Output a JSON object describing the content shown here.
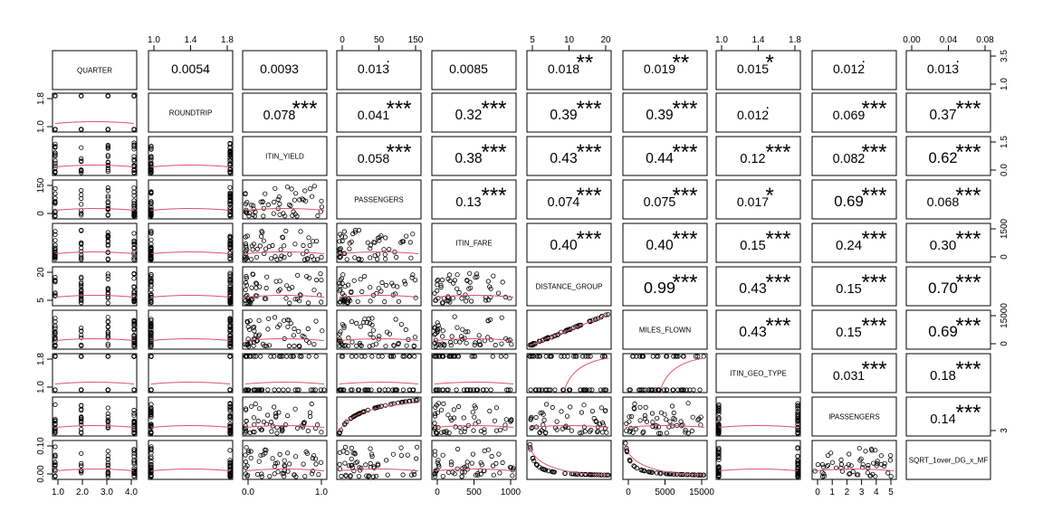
{
  "chart_data": {
    "type": "scatter",
    "variables": [
      "QUARTER",
      "ROUNDTRIP",
      "ITIN_YIELD",
      "PASSENGERS",
      "ITIN_FARE",
      "DISTANCE_GROUP",
      "MILES_FLOWN",
      "ITIN_GEO_TYPE",
      "lPASSENGERS",
      "SQRT_1over_DG_x_MF"
    ],
    "correlations": [
      [
        "",
        "0.0054",
        "0.0093",
        "0.013",
        "0.0085",
        "0.018",
        "0.019",
        "0.015",
        "0.012",
        "0.013"
      ],
      [
        "",
        "",
        "0.078",
        "0.041",
        "0.32",
        "0.39",
        "0.39",
        "0.012",
        "0.069",
        "0.37"
      ],
      [
        "",
        "",
        "",
        "0.058",
        "0.38",
        "0.43",
        "0.44",
        "0.12",
        "0.082",
        "0.62"
      ],
      [
        "",
        "",
        "",
        "",
        "0.13",
        "0.074",
        "0.075",
        "0.017",
        "0.69",
        "0.068"
      ],
      [
        "",
        "",
        "",
        "",
        "",
        "0.40",
        "0.40",
        "0.15",
        "0.24",
        "0.30"
      ],
      [
        "",
        "",
        "",
        "",
        "",
        "",
        "0.99",
        "0.43",
        "0.15",
        "0.70"
      ],
      [
        "",
        "",
        "",
        "",
        "",
        "",
        "",
        "0.43",
        "0.15",
        "0.69"
      ],
      [
        "",
        "",
        "",
        "",
        "",
        "",
        "",
        "",
        "0.031",
        "0.18"
      ],
      [
        "",
        "",
        "",
        "",
        "",
        "",
        "",
        "",
        "",
        "0.14"
      ]
    ],
    "significance": [
      [
        "",
        "",
        "",
        ".",
        "",
        "**",
        "**",
        "*",
        ".",
        "."
      ],
      [
        "",
        "",
        "***",
        "***",
        "***",
        "***",
        "***",
        ".",
        "***",
        "***"
      ],
      [
        "",
        "",
        "",
        "***",
        "***",
        "***",
        "***",
        "***",
        "***",
        "***"
      ],
      [
        "",
        "",
        "",
        "",
        "***",
        "***",
        "***",
        "*",
        "***",
        "***"
      ],
      [
        "",
        "",
        "",
        "",
        "",
        "***",
        "***",
        "***",
        "***",
        "***"
      ],
      [
        "",
        "",
        "",
        "",
        "",
        "",
        "***",
        "***",
        "***",
        "***"
      ],
      [
        "",
        "",
        "",
        "",
        "",
        "",
        "",
        "***",
        "***",
        "***"
      ],
      [
        "",
        "",
        "",
        "",
        "",
        "",
        "",
        "",
        "***",
        "***"
      ],
      [
        "",
        "",
        "",
        "",
        "",
        "",
        "",
        "",
        "",
        "***"
      ]
    ],
    "top_ticks": {
      "1": [
        "1.0",
        "1.4",
        "1.8"
      ],
      "3": [
        "0",
        "50",
        "150"
      ],
      "5": [
        "5",
        "10",
        "20"
      ],
      "7": [
        "1.0",
        "1.4",
        "1.8"
      ],
      "9": [
        "0.00",
        "0.04",
        "0.08"
      ]
    },
    "bottom_ticks": {
      "0": [
        "1.0",
        "2.0",
        "3.0",
        "4.0"
      ],
      "2": [
        "0.0",
        "1.0"
      ],
      "4": [
        "0",
        "500",
        "1000"
      ],
      "6": [
        "0",
        "5000",
        "15000"
      ],
      "8": [
        "0",
        "1",
        "2",
        "3",
        "4",
        "5"
      ]
    },
    "left_ticks": {
      "1": [
        "1.0",
        "1.8"
      ],
      "3": [
        "0",
        "150"
      ],
      "5": [
        "5",
        "20"
      ],
      "7": [
        "1.0",
        "1.8"
      ],
      "9": [
        "0.00",
        "0.10"
      ]
    },
    "right_ticks": {
      "0": [
        "1.0",
        "3.5"
      ],
      "2": [
        "0.0",
        "1.5"
      ],
      "4": [
        "0",
        "1500"
      ],
      "6": [
        "0",
        "15000"
      ],
      "8": [
        "3"
      ]
    },
    "colors": {
      "stars": "#DF536B",
      "smoother": "#DF536B",
      "points": "#000000"
    }
  }
}
